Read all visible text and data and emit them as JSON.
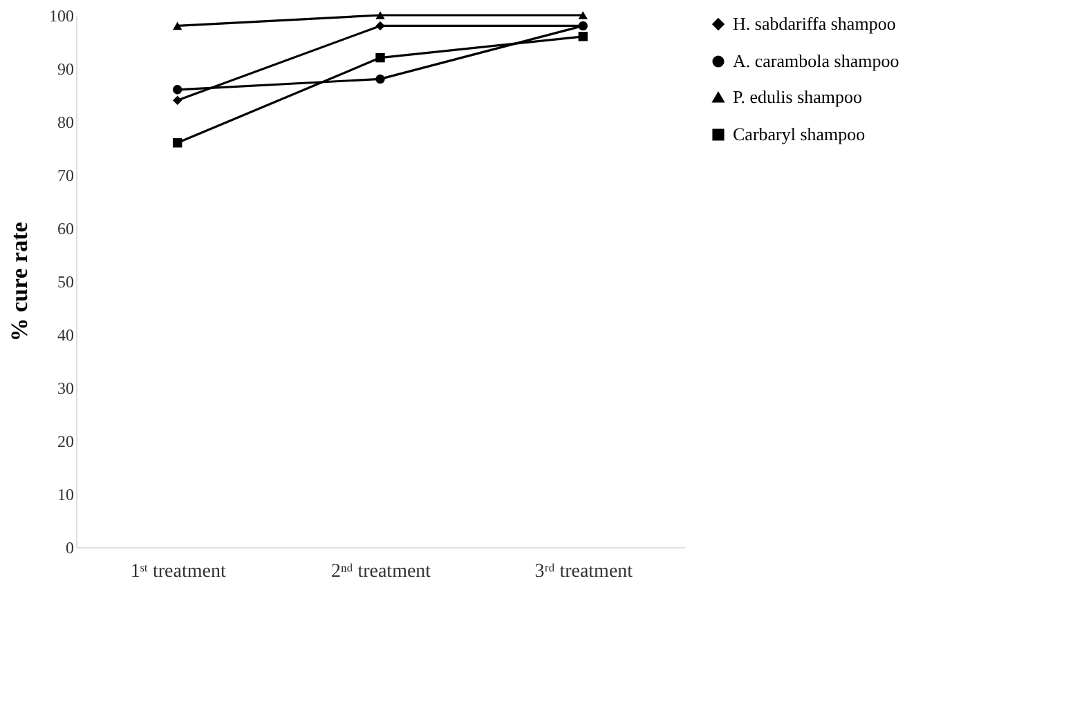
{
  "chart_data": {
    "type": "line",
    "ylabel": "% cure rate",
    "categories": [
      "1ˢᵗ treatment",
      "2ⁿᵈ treatment",
      "3ʳᵈ treatment"
    ],
    "series": [
      {
        "name": "H. sabdariffa shampoo",
        "color": "#000000",
        "marker": "diamond",
        "values": [
          84,
          98,
          98
        ]
      },
      {
        "name": "A. carambola shampoo",
        "color": "#000000",
        "marker": "circle",
        "values": [
          86,
          88,
          98
        ]
      },
      {
        "name": "P. edulis shampoo",
        "color": "#000000",
        "marker": "triangle",
        "values": [
          98,
          100,
          100
        ]
      },
      {
        "name": "Carbaryl shampoo",
        "color": "#000000",
        "marker": "square",
        "values": [
          76,
          92,
          96
        ]
      }
    ],
    "ylim": [
      0,
      100
    ],
    "yticks": [
      0,
      10,
      20,
      30,
      40,
      50,
      60,
      70,
      80,
      90,
      100
    ],
    "grid": false,
    "legend": "top right",
    "line_style": "solid"
  }
}
